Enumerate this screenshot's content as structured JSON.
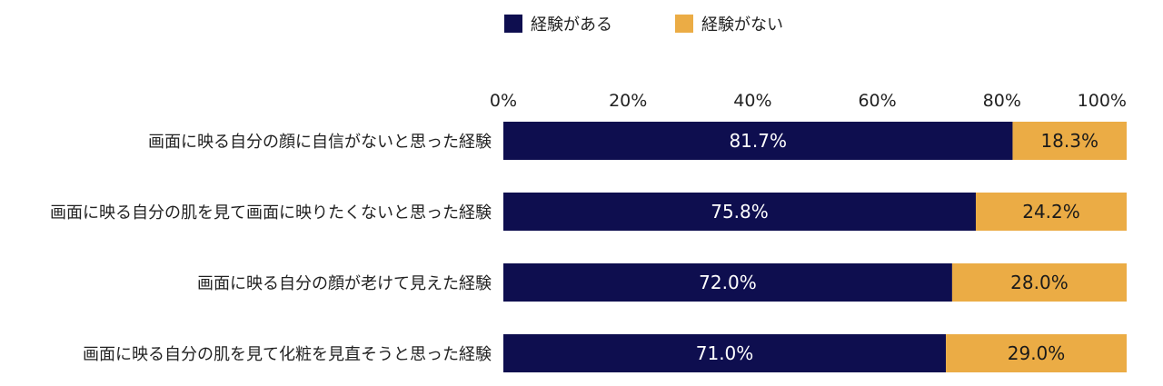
{
  "chart_data": {
    "type": "bar",
    "orientation": "horizontal",
    "stacked": true,
    "unit": "%",
    "categories": [
      "画面に映る自分の顔に自信がないと思った経験",
      "画面に映る自分の肌を見て画面に映りたくないと思った経験",
      "画面に映る自分の顔が老けて見えた経験",
      "画面に映る自分の肌を見て化粧を見直そうと思った経験"
    ],
    "series": [
      {
        "name": "経験がある",
        "color": "#0e0e4f",
        "values": [
          81.7,
          75.8,
          72.0,
          71.0
        ],
        "labels": [
          "81.7%",
          "75.8%",
          "72.0%",
          "71.0%"
        ]
      },
      {
        "name": "経験がない",
        "color": "#ebac45",
        "values": [
          18.3,
          24.2,
          28.0,
          29.0
        ],
        "labels": [
          "18.3%",
          "24.2%",
          "28.0%",
          "29.0%"
        ]
      }
    ],
    "x_ticks": [
      "0%",
      "20%",
      "40%",
      "60%",
      "80%",
      "100%"
    ],
    "xlim": [
      0,
      100
    ],
    "axis_position": "top",
    "legend_position": "top-center",
    "grid": false
  }
}
